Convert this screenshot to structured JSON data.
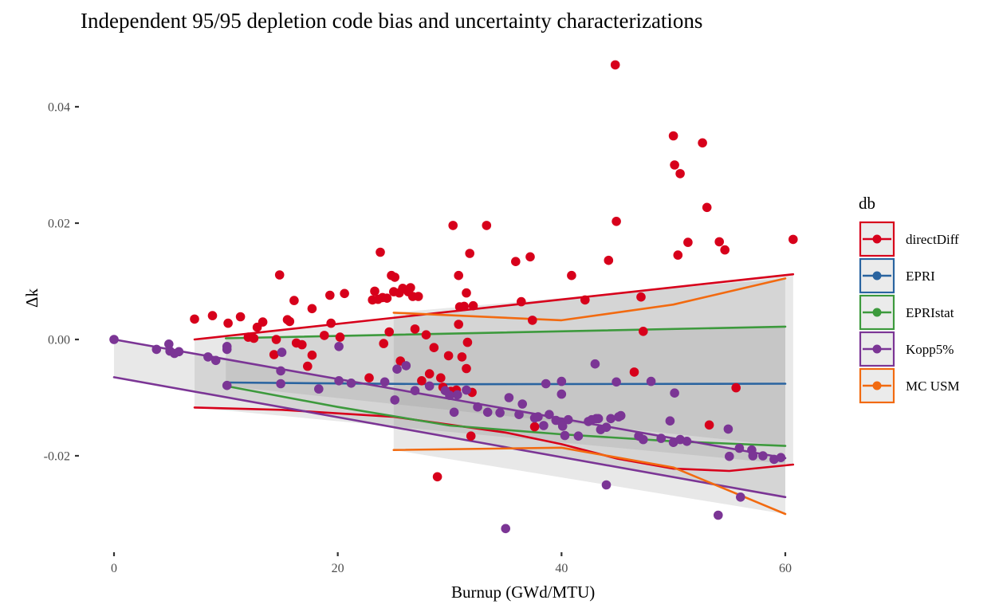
{
  "chart_data": {
    "type": "scatter",
    "title": "Independent 95/95 depletion code bias and uncertainty characterizations",
    "xlabel": "Burnup (GWd/MTU)",
    "ylabel": "Δk",
    "xlim": [
      -1,
      61
    ],
    "ylim": [
      -0.0345,
      0.0475
    ],
    "x_ticks": [
      0,
      20,
      40,
      60
    ],
    "x_tick_labels": [
      "0",
      "20",
      "40",
      "60"
    ],
    "y_ticks": [
      -0.02,
      0.0,
      0.02,
      0.04
    ],
    "y_tick_labels": [
      "-0.02",
      "0.00",
      "0.02",
      "0.04"
    ],
    "grid": false,
    "legend": {
      "title": "db",
      "placement": "right",
      "entries": [
        {
          "name": "directDiff",
          "color": "#D7001B"
        },
        {
          "name": "EPRI",
          "color": "#2A64A0"
        },
        {
          "name": "EPRIstat",
          "color": "#3D9A3D"
        },
        {
          "name": "Kopp5%",
          "color": "#7B3595"
        },
        {
          "name": "MC USM",
          "color": "#F26A10"
        }
      ]
    },
    "bands": [
      {
        "series": "Kopp5%",
        "x": [
          0,
          60
        ],
        "upper": [
          0.0,
          -0.0204
        ],
        "lower": [
          -0.0065,
          -0.0271
        ]
      },
      {
        "series": "directDiff",
        "x": [
          7.2,
          60.7
        ],
        "upper": [
          0.0,
          0.0112
        ],
        "lower": [
          -0.0117,
          -0.0215
        ]
      },
      {
        "series": "EPRIstat",
        "x": [
          10,
          60
        ],
        "upper": [
          0.0002,
          0.0022
        ],
        "lower": [
          -0.008,
          -0.0183
        ]
      },
      {
        "series": "MC USM",
        "x": [
          25,
          60
        ],
        "upper": [
          0.0046,
          0.0105
        ],
        "lower": [
          -0.019,
          -0.03
        ]
      }
    ],
    "series_lines": [
      {
        "name": "directDiff",
        "kind": "upper",
        "points": [
          [
            7.2,
            0.0
          ],
          [
            60.7,
            0.0112
          ]
        ]
      },
      {
        "name": "directDiff",
        "kind": "lower",
        "points": [
          [
            7.2,
            -0.0117
          ],
          [
            15,
            -0.0121
          ],
          [
            25,
            -0.0133
          ],
          [
            35,
            -0.016
          ],
          [
            40,
            -0.018
          ],
          [
            45,
            -0.0205
          ],
          [
            50,
            -0.0222
          ],
          [
            55,
            -0.0226
          ],
          [
            60.7,
            -0.0215
          ]
        ]
      },
      {
        "name": "EPRI",
        "kind": "mean",
        "points": [
          [
            10,
            -0.0074
          ],
          [
            30,
            -0.0077
          ],
          [
            60,
            -0.0076
          ]
        ]
      },
      {
        "name": "EPRIstat",
        "kind": "upper",
        "points": [
          [
            10,
            0.0002
          ],
          [
            60,
            0.0022
          ]
        ]
      },
      {
        "name": "EPRIstat",
        "kind": "lower",
        "points": [
          [
            10,
            -0.008
          ],
          [
            20,
            -0.0116
          ],
          [
            30,
            -0.0148
          ],
          [
            40,
            -0.0163
          ],
          [
            50,
            -0.0175
          ],
          [
            60,
            -0.0183
          ]
        ]
      },
      {
        "name": "Kopp5%",
        "kind": "upper",
        "points": [
          [
            0,
            0.0
          ],
          [
            60,
            -0.0204
          ]
        ]
      },
      {
        "name": "Kopp5%",
        "kind": "lower",
        "points": [
          [
            0,
            -0.0065
          ],
          [
            60,
            -0.0271
          ]
        ]
      },
      {
        "name": "MC USM",
        "kind": "upper",
        "points": [
          [
            25,
            0.0046
          ],
          [
            40,
            0.0033
          ],
          [
            50,
            0.006
          ],
          [
            60,
            0.0105
          ]
        ]
      },
      {
        "name": "MC USM",
        "kind": "lower",
        "points": [
          [
            25,
            -0.019
          ],
          [
            40,
            -0.0186
          ],
          [
            50,
            -0.022
          ],
          [
            60,
            -0.03
          ]
        ]
      }
    ],
    "series": [
      {
        "name": "directDiff",
        "points": [
          [
            7.2,
            0.0035
          ],
          [
            8.8,
            0.0041
          ],
          [
            10.2,
            0.0028
          ],
          [
            11.3,
            0.0039
          ],
          [
            12.0,
            0.0004
          ],
          [
            12.5,
            0.0002
          ],
          [
            12.8,
            0.0021
          ],
          [
            13.3,
            0.003
          ],
          [
            14.8,
            0.0111
          ],
          [
            15.5,
            0.0034
          ],
          [
            15.7,
            0.0031
          ],
          [
            16.1,
            0.0067
          ],
          [
            14.5,
            0.0
          ],
          [
            14.3,
            -0.0026
          ],
          [
            16.3,
            -0.0006
          ],
          [
            16.8,
            -0.0009
          ],
          [
            17.3,
            -0.0046
          ],
          [
            17.7,
            -0.0027
          ],
          [
            17.7,
            0.0053
          ],
          [
            18.8,
            0.0007
          ],
          [
            19.3,
            0.0076
          ],
          [
            19.4,
            0.0028
          ],
          [
            20.2,
            0.0004
          ],
          [
            20.6,
            0.0079
          ],
          [
            22.8,
            -0.0066
          ],
          [
            23.1,
            0.0068
          ],
          [
            23.3,
            0.0083
          ],
          [
            23.8,
            0.015
          ],
          [
            23.6,
            0.0069
          ],
          [
            24.0,
            0.0072
          ],
          [
            24.1,
            -0.0007
          ],
          [
            24.4,
            0.0071
          ],
          [
            24.6,
            0.0013
          ],
          [
            24.8,
            0.011
          ],
          [
            25.0,
            0.0082
          ],
          [
            25.1,
            0.0107
          ],
          [
            25.5,
            0.008
          ],
          [
            25.8,
            0.0088
          ],
          [
            25.6,
            -0.0037
          ],
          [
            26.3,
            0.0082
          ],
          [
            26.5,
            0.0089
          ],
          [
            26.7,
            0.0074
          ],
          [
            26.9,
            0.0018
          ],
          [
            27.2,
            0.0074
          ],
          [
            27.5,
            -0.0071
          ],
          [
            27.9,
            0.0008
          ],
          [
            28.2,
            -0.0059
          ],
          [
            28.6,
            -0.0014
          ],
          [
            28.9,
            -0.0236
          ],
          [
            29.2,
            -0.0066
          ],
          [
            29.4,
            -0.0082
          ],
          [
            29.9,
            -0.0028
          ],
          [
            30.1,
            -0.0089
          ],
          [
            30.3,
            0.0196
          ],
          [
            30.6,
            -0.0087
          ],
          [
            30.8,
            0.011
          ],
          [
            30.9,
            0.0056
          ],
          [
            31.1,
            -0.003
          ],
          [
            31.3,
            0.0057
          ],
          [
            31.5,
            0.008
          ],
          [
            31.6,
            -0.0005
          ],
          [
            31.5,
            -0.005
          ],
          [
            31.8,
            0.0148
          ],
          [
            31.9,
            -0.0166
          ],
          [
            32.1,
            0.0058
          ],
          [
            32.0,
            -0.0091
          ],
          [
            30.8,
            0.0026
          ],
          [
            33.3,
            0.0196
          ],
          [
            35.9,
            0.0134
          ],
          [
            36.4,
            0.0065
          ],
          [
            37.2,
            0.0142
          ],
          [
            37.4,
            0.0033
          ],
          [
            37.6,
            -0.015
          ],
          [
            40.9,
            0.011
          ],
          [
            42.1,
            0.0068
          ],
          [
            44.2,
            0.0136
          ],
          [
            44.8,
            0.0472
          ],
          [
            44.9,
            0.0203
          ],
          [
            46.5,
            -0.0056
          ],
          [
            47.1,
            0.0073
          ],
          [
            47.3,
            0.0014
          ],
          [
            50.0,
            0.035
          ],
          [
            50.1,
            0.03
          ],
          [
            50.4,
            0.0145
          ],
          [
            50.6,
            0.0285
          ],
          [
            51.3,
            0.0167
          ],
          [
            52.6,
            0.0338
          ],
          [
            53.0,
            0.0227
          ],
          [
            53.2,
            -0.0147
          ],
          [
            54.1,
            0.0168
          ],
          [
            54.6,
            0.0154
          ],
          [
            55.6,
            -0.0083
          ],
          [
            60.7,
            0.0172
          ]
        ]
      },
      {
        "name": "EPRI",
        "points": []
      },
      {
        "name": "EPRIstat",
        "points": []
      },
      {
        "name": "Kopp5%",
        "points": [
          [
            0.0,
            0.0
          ],
          [
            3.8,
            -0.0017
          ],
          [
            4.9,
            -0.0008
          ],
          [
            5.0,
            -0.002
          ],
          [
            5.4,
            -0.0024
          ],
          [
            5.8,
            -0.0021
          ],
          [
            8.4,
            -0.003
          ],
          [
            9.1,
            -0.0036
          ],
          [
            10.1,
            -0.0012
          ],
          [
            10.1,
            -0.0017
          ],
          [
            10.1,
            -0.0079
          ],
          [
            14.9,
            -0.0054
          ],
          [
            15.0,
            -0.0022
          ],
          [
            14.9,
            -0.0076
          ],
          [
            18.3,
            -0.0085
          ],
          [
            20.1,
            -0.0071
          ],
          [
            20.1,
            -0.0012
          ],
          [
            21.2,
            -0.0075
          ],
          [
            24.2,
            -0.0073
          ],
          [
            25.1,
            -0.0104
          ],
          [
            25.3,
            -0.0051
          ],
          [
            26.9,
            -0.0088
          ],
          [
            26.1,
            -0.0045
          ],
          [
            28.2,
            -0.008
          ],
          [
            29.6,
            -0.0088
          ],
          [
            30.0,
            -0.0096
          ],
          [
            30.4,
            -0.0125
          ],
          [
            30.7,
            -0.0095
          ],
          [
            31.5,
            -0.0087
          ],
          [
            32.5,
            -0.0116
          ],
          [
            33.4,
            -0.0125
          ],
          [
            34.5,
            -0.0126
          ],
          [
            35.3,
            -0.01
          ],
          [
            36.2,
            -0.0129
          ],
          [
            36.5,
            -0.0111
          ],
          [
            37.6,
            -0.0135
          ],
          [
            37.9,
            -0.0133
          ],
          [
            38.6,
            -0.0076
          ],
          [
            38.9,
            -0.0129
          ],
          [
            38.4,
            -0.0148
          ],
          [
            39.5,
            -0.0139
          ],
          [
            40.0,
            -0.0142
          ],
          [
            40.0,
            -0.0072
          ],
          [
            40.0,
            -0.0094
          ],
          [
            40.1,
            -0.0149
          ],
          [
            40.3,
            -0.0165
          ],
          [
            40.6,
            -0.0138
          ],
          [
            41.5,
            -0.0166
          ],
          [
            42.4,
            -0.0141
          ],
          [
            42.7,
            -0.0138
          ],
          [
            43.0,
            -0.0042
          ],
          [
            43.1,
            -0.0136
          ],
          [
            43.3,
            -0.0136
          ],
          [
            43.5,
            -0.0155
          ],
          [
            44.0,
            -0.0151
          ],
          [
            44.4,
            -0.0136
          ],
          [
            44.9,
            -0.0073
          ],
          [
            45.3,
            -0.0131
          ],
          [
            45.1,
            -0.0133
          ],
          [
            46.9,
            -0.0166
          ],
          [
            47.3,
            -0.0172
          ],
          [
            48.0,
            -0.0072
          ],
          [
            48.9,
            -0.017
          ],
          [
            49.7,
            -0.014
          ],
          [
            50.0,
            -0.0177
          ],
          [
            50.1,
            -0.0092
          ],
          [
            50.6,
            -0.0172
          ],
          [
            51.2,
            -0.0175
          ],
          [
            54.9,
            -0.0154
          ],
          [
            55.0,
            -0.0201
          ],
          [
            55.9,
            -0.0187
          ],
          [
            57.0,
            -0.019
          ],
          [
            57.1,
            -0.02
          ],
          [
            58.0,
            -0.02
          ],
          [
            59.0,
            -0.0206
          ],
          [
            59.6,
            -0.0203
          ],
          [
            35.0,
            -0.0325
          ],
          [
            44.0,
            -0.025
          ],
          [
            54.0,
            -0.0302
          ],
          [
            56.0,
            -0.0271
          ]
        ]
      },
      {
        "name": "MC USM",
        "points": []
      }
    ]
  }
}
